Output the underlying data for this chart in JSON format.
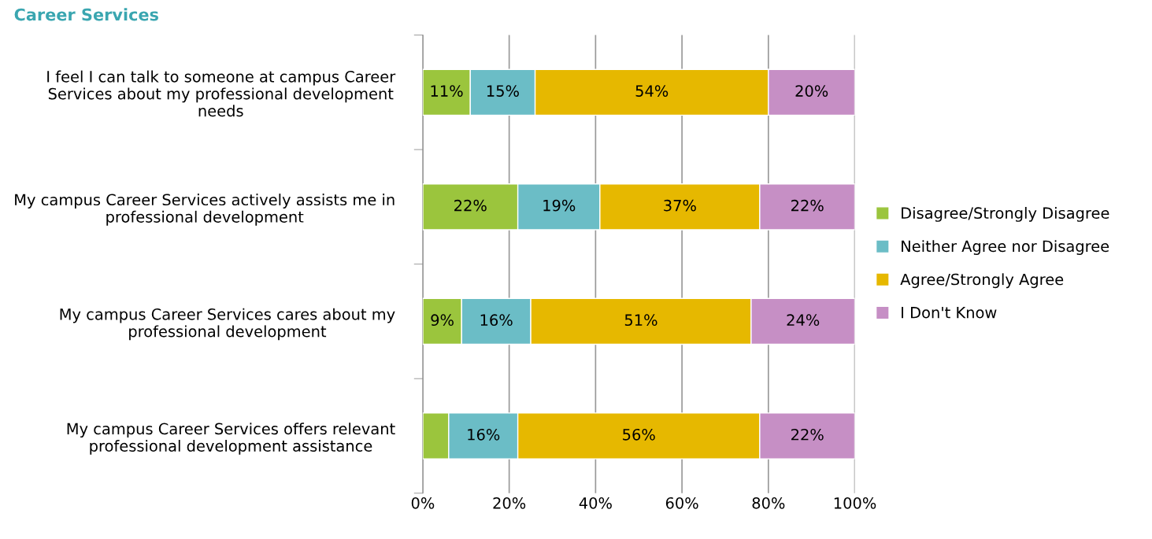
{
  "chart_data": {
    "type": "bar",
    "title": "Career Services",
    "orientation": "horizontal",
    "stacked": true,
    "categories": [
      "I feel I can talk to someone at campus Career Services about my professional development needs",
      "My campus Career Services actively assists me in professional development",
      "My campus Career Services cares about my professional development",
      "My campus Career Services offers relevant professional development assistance"
    ],
    "series": [
      {
        "name": "Disagree/Strongly Disagree",
        "color": "#9bc53d",
        "values": [
          11,
          22,
          9,
          6
        ],
        "value_labels": [
          "11%",
          "22%",
          "9%",
          null
        ]
      },
      {
        "name": "Neither Agree nor Disagree",
        "color": "#6bbdc6",
        "values": [
          15,
          19,
          16,
          16
        ],
        "value_labels": [
          "15%",
          "19%",
          "16%",
          "16%"
        ]
      },
      {
        "name": "Agree/Strongly Agree",
        "color": "#e6b800",
        "values": [
          54,
          37,
          51,
          56
        ],
        "value_labels": [
          "54%",
          "37%",
          "51%",
          "56%"
        ]
      },
      {
        "name": "I Don't Know",
        "color": "#c68fc5",
        "values": [
          20,
          22,
          24,
          22
        ],
        "value_labels": [
          "20%",
          "22%",
          "24%",
          "22%"
        ]
      }
    ],
    "xlim": [
      0,
      100
    ],
    "xticks": [
      {
        "value": 0,
        "label": "0%"
      },
      {
        "value": 20,
        "label": "20%"
      },
      {
        "value": 40,
        "label": "40%"
      },
      {
        "value": 60,
        "label": "60%"
      },
      {
        "value": 80,
        "label": "80%"
      },
      {
        "value": 100,
        "label": "100%"
      }
    ],
    "grid": "x",
    "legend": "right"
  }
}
